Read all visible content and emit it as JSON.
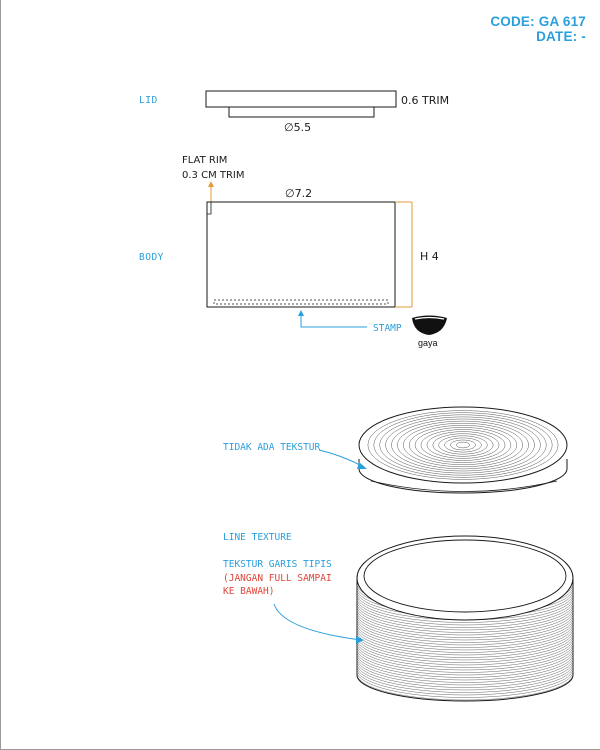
{
  "header": {
    "code": "CODE: GA 617",
    "date": "DATE: -"
  },
  "lid": {
    "label": "LID",
    "trim": "0.6 TRIM",
    "diameter": "∅5.5"
  },
  "body": {
    "label": "BODY",
    "rim_line1": "FLAT RIM",
    "rim_line2": "0.3 CM TRIM",
    "diameter": "∅7.2",
    "height": "H 4",
    "stamp": "STAMP"
  },
  "logo": {
    "text": "gaya"
  },
  "views": {
    "lid_note": "TIDAK ADA TEKSTUR",
    "body_title": "LINE TEXTURE",
    "body_note": "TEKSTUR GARIS TIPIS",
    "warning_line1": "(JANGAN FULL SAMPAI",
    "warning_line2": "KE BAWAH)"
  },
  "colors": {
    "accent": "#2a9fdc",
    "orange": "#e39b3c",
    "warning": "#e0463a",
    "ink": "#1a1a1a"
  }
}
